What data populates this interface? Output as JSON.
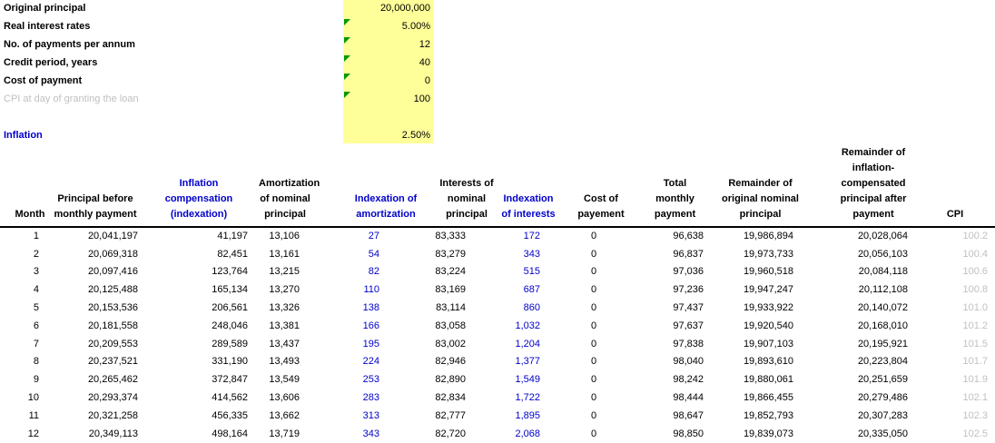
{
  "colors": {
    "highlight_yellow": "#ffff99",
    "heading_blue": "#0000cc",
    "muted_gray": "#c0c0c0",
    "flag_green": "#009900"
  },
  "parameters": {
    "rows": [
      {
        "label": "Original principal",
        "value": "20,000,000",
        "label_style": "bold",
        "marker": false
      },
      {
        "label": "Real interest rates",
        "value": "5.00%",
        "label_style": "bold",
        "marker": true
      },
      {
        "label": "No. of payments per annum",
        "value": "12",
        "label_style": "bold",
        "marker": true
      },
      {
        "label": "Credit period, years",
        "value": "40",
        "label_style": "bold",
        "marker": true
      },
      {
        "label": "Cost of payment",
        "value": "0",
        "label_style": "bold",
        "marker": true
      },
      {
        "label": "CPI at day of granting the loan",
        "value": "100",
        "label_style": "gray",
        "marker": true
      },
      {
        "label": "",
        "value": "",
        "label_style": "blank",
        "marker": false
      },
      {
        "label": "Inflation",
        "value": "2.50%",
        "label_style": "blue-bold",
        "marker": false
      }
    ]
  },
  "table": {
    "columns": [
      {
        "id": "month",
        "label": "Month",
        "header_color": "black",
        "value_color": "black"
      },
      {
        "id": "principal-before-payment",
        "label": "Principal before\nmonthly payment",
        "header_color": "black",
        "value_color": "black"
      },
      {
        "id": "inflation-compensation",
        "label": "Inflation\ncompensation\n(indexation)",
        "header_color": "blue",
        "value_color": "black"
      },
      {
        "id": "amortization-of-nominal",
        "label": "Amortization\nof nominal\nprincipal",
        "header_color": "black",
        "value_color": "black"
      },
      {
        "id": "indexation-of-amortization",
        "label": "Indexation of\namortization",
        "header_color": "blue",
        "value_color": "blue"
      },
      {
        "id": "interests-of-nominal",
        "label": "Interests of\nnominal\nprincipal",
        "header_color": "black",
        "value_color": "black"
      },
      {
        "id": "indexation-of-interests",
        "label": "Indexation\nof interests",
        "header_color": "blue",
        "value_color": "blue"
      },
      {
        "id": "cost-of-payment",
        "label": "Cost of\npayement",
        "header_color": "black",
        "value_color": "black"
      },
      {
        "id": "total-monthly-payment",
        "label": "Total\nmonthly\npayment",
        "header_color": "black",
        "value_color": "black"
      },
      {
        "id": "remainder-original-nominal",
        "label": "Remainder of\noriginal nominal\nprincipal",
        "header_color": "black",
        "value_color": "black"
      },
      {
        "id": "remainder-inflation-comp",
        "label": "Remainder of\ninflation-\ncompensated\nprincipal after\npayment",
        "header_color": "black",
        "value_color": "black"
      },
      {
        "id": "cpi",
        "label": "CPI",
        "header_color": "black",
        "value_color": "gray"
      }
    ],
    "rows": [
      [
        "1",
        "20,041,197",
        "41,197",
        "13,106",
        "27",
        "83,333",
        "172",
        "0",
        "96,638",
        "19,986,894",
        "20,028,064",
        "100.2"
      ],
      [
        "2",
        "20,069,318",
        "82,451",
        "13,161",
        "54",
        "83,279",
        "343",
        "0",
        "96,837",
        "19,973,733",
        "20,056,103",
        "100.4"
      ],
      [
        "3",
        "20,097,416",
        "123,764",
        "13,215",
        "82",
        "83,224",
        "515",
        "0",
        "97,036",
        "19,960,518",
        "20,084,118",
        "100.6"
      ],
      [
        "4",
        "20,125,488",
        "165,134",
        "13,270",
        "110",
        "83,169",
        "687",
        "0",
        "97,236",
        "19,947,247",
        "20,112,108",
        "100.8"
      ],
      [
        "5",
        "20,153,536",
        "206,561",
        "13,326",
        "138",
        "83,114",
        "860",
        "0",
        "97,437",
        "19,933,922",
        "20,140,072",
        "101.0"
      ],
      [
        "6",
        "20,181,558",
        "248,046",
        "13,381",
        "166",
        "83,058",
        "1,032",
        "0",
        "97,637",
        "19,920,540",
        "20,168,010",
        "101.2"
      ],
      [
        "7",
        "20,209,553",
        "289,589",
        "13,437",
        "195",
        "83,002",
        "1,204",
        "0",
        "97,838",
        "19,907,103",
        "20,195,921",
        "101.5"
      ],
      [
        "8",
        "20,237,521",
        "331,190",
        "13,493",
        "224",
        "82,946",
        "1,377",
        "0",
        "98,040",
        "19,893,610",
        "20,223,804",
        "101.7"
      ],
      [
        "9",
        "20,265,462",
        "372,847",
        "13,549",
        "253",
        "82,890",
        "1,549",
        "0",
        "98,242",
        "19,880,061",
        "20,251,659",
        "101.9"
      ],
      [
        "10",
        "20,293,374",
        "414,562",
        "13,606",
        "283",
        "82,834",
        "1,722",
        "0",
        "98,444",
        "19,866,455",
        "20,279,486",
        "102.1"
      ],
      [
        "11",
        "20,321,258",
        "456,335",
        "13,662",
        "313",
        "82,777",
        "1,895",
        "0",
        "98,647",
        "19,852,793",
        "20,307,283",
        "102.3"
      ],
      [
        "12",
        "20,349,113",
        "498,164",
        "13,719",
        "343",
        "82,720",
        "2,068",
        "0",
        "98,850",
        "19,839,073",
        "20,335,050",
        "102.5"
      ]
    ]
  }
}
